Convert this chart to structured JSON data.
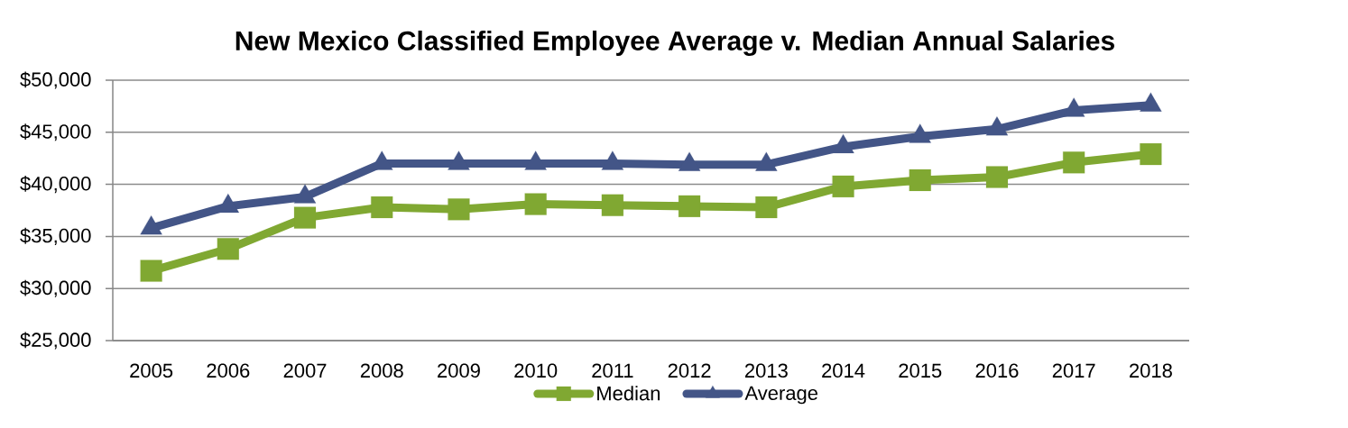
{
  "chart_data": {
    "type": "line",
    "title": "New Mexico Classified Employee Average v. Median Annual Salaries",
    "categories": [
      "2005",
      "2006",
      "2007",
      "2008",
      "2009",
      "2010",
      "2011",
      "2012",
      "2013",
      "2014",
      "2015",
      "2016",
      "2017",
      "2018"
    ],
    "series": [
      {
        "name": "Median",
        "color": "#80a832",
        "marker": "square",
        "values": [
          31700,
          33800,
          36800,
          37800,
          37600,
          38100,
          38000,
          37900,
          37800,
          39800,
          40400,
          40700,
          42100,
          42900
        ]
      },
      {
        "name": "Average",
        "color": "#435587",
        "marker": "triangle",
        "values": [
          35800,
          37900,
          38800,
          42000,
          42000,
          42000,
          42000,
          41900,
          41900,
          43600,
          44600,
          45300,
          47100,
          47600
        ]
      }
    ],
    "ylim": [
      25000,
      50000
    ],
    "yticks": [
      {
        "value": 25000,
        "label": "$25,000"
      },
      {
        "value": 30000,
        "label": "$30,000"
      },
      {
        "value": 35000,
        "label": "$35,000"
      },
      {
        "value": 40000,
        "label": "$40,000"
      },
      {
        "value": 45000,
        "label": "$45,000"
      },
      {
        "value": 50000,
        "label": "$50,000"
      }
    ],
    "grid": "y",
    "legend": "bottom",
    "line_style": "solid"
  }
}
